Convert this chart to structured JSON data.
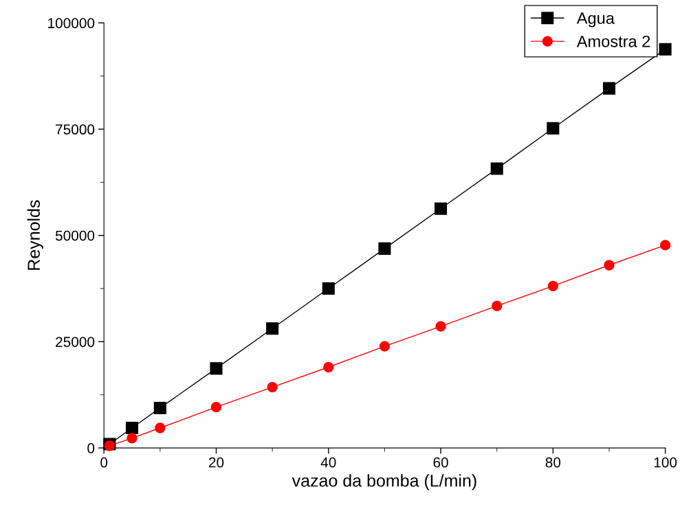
{
  "chart_data": {
    "type": "line",
    "xlabel": "vazao da bomba (L/min)",
    "ylabel": "Reynolds",
    "xlim": [
      0,
      100
    ],
    "xticks": [
      0,
      20,
      40,
      60,
      80,
      100
    ],
    "ylim": [
      0,
      100000
    ],
    "yticks": [
      0,
      25000,
      50000,
      75000,
      100000
    ],
    "grid": false,
    "legend": "top right",
    "line_style": "solid",
    "series": [
      {
        "name": "Agua",
        "color": "#000000",
        "marker": "square",
        "x": [
          1,
          5,
          10,
          20,
          30,
          40,
          50,
          60,
          70,
          80,
          90,
          100
        ],
        "values": [
          900,
          4700,
          9400,
          18700,
          28100,
          37500,
          46900,
          56300,
          65700,
          75200,
          84600,
          93800
        ]
      },
      {
        "name": "Amostra 2",
        "color": "#ff0000",
        "marker": "circle",
        "x": [
          1,
          5,
          10,
          20,
          30,
          40,
          50,
          60,
          70,
          80,
          90,
          100
        ],
        "values": [
          500,
          2300,
          4700,
          9600,
          14300,
          19000,
          23900,
          28600,
          33400,
          38100,
          43000,
          47700
        ]
      }
    ]
  }
}
